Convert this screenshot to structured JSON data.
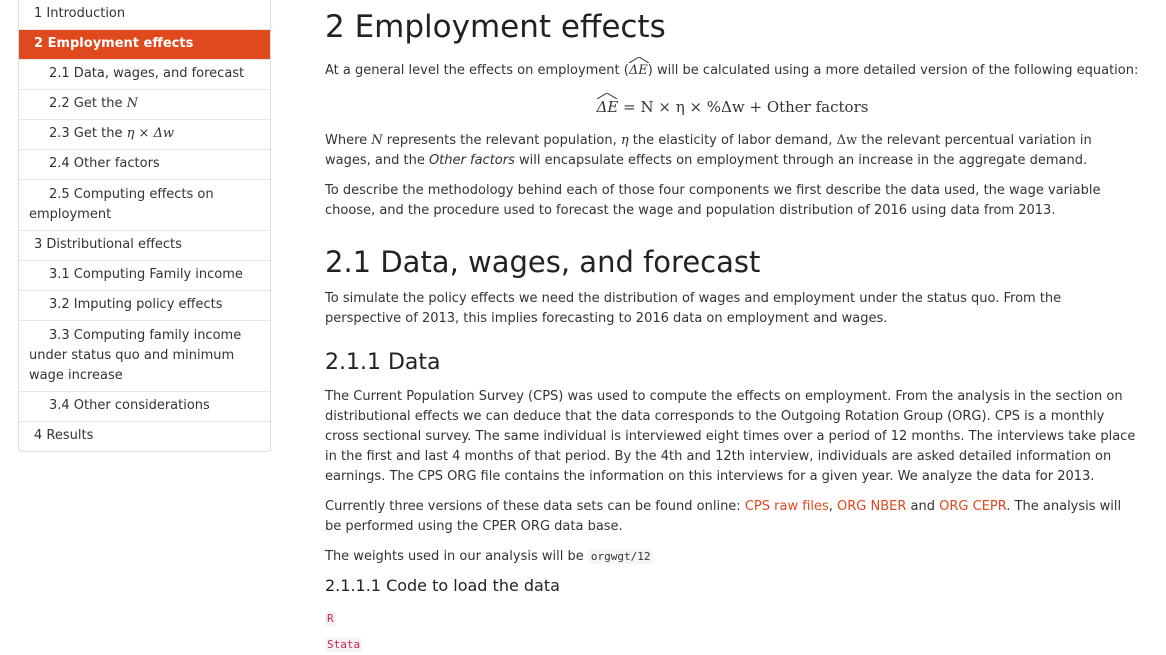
{
  "toc": {
    "items": [
      {
        "label": "1 Introduction"
      },
      {
        "label": "2 Employment effects"
      },
      {
        "label": "2.1 Data, wages, and forecast"
      },
      {
        "label_prefix": "2.2 Get the ",
        "label_math": "N"
      },
      {
        "label_prefix": "2.3 Get the ",
        "label_math": "η × Δw"
      },
      {
        "label": "2.4 Other factors"
      },
      {
        "label": "2.5 Computing effects on employment"
      },
      {
        "label": "3 Distributional effects"
      },
      {
        "label": "3.1 Computing Family income"
      },
      {
        "label": "3.2 Imputing policy effects"
      },
      {
        "label": "3.3 Computing family income under status quo and minimum wage increase"
      },
      {
        "label": "3.4 Other considerations"
      },
      {
        "label": "4 Results"
      }
    ]
  },
  "content": {
    "h1": "2 Employment effects",
    "p1_a": "At a general level the effects on employment (",
    "p1_math": "ΔE",
    "p1_b": ") will be calculated using a more detailed version of the following equation:",
    "eq_lhs": "ΔE",
    "eq_rhs": " = N × η × %Δw + Other factors",
    "p2_a": "Where ",
    "p2_N": "N",
    "p2_b": " represents the relevant population, ",
    "p2_eta": "η",
    "p2_c": " the elasticity of labor demand, ",
    "p2_dw": "Δw",
    "p2_d": " the relevant percentual variation in wages, and the ",
    "p2_other": "Other factors",
    "p2_e": " will encapsulate effects on employment through an increase in the aggregate demand.",
    "p3": "To describe the methodology behind each of those four components we first describe the data used, the wage variable choose, and the procedure used to forecast the wage and population distribution of 2016 using data from 2013.",
    "h2": "2.1 Data, wages, and forecast",
    "p4": "To simulate the policy effects we need the distribution of wages and employment under the status quo. From the perspective of 2013, this implies forecasting to 2016 data on employment and wages.",
    "h3": "2.1.1 Data",
    "p5": "The Current Population Survey (CPS) was used to compute the effects on employment. From the analysis in the section on distributional effects we can deduce that the data corresponds to the Outgoing Rotation Group (ORG). CPS is a monthly cross sectional survey. The same individual is interviewed eight times over a period of 12 months. The interviews take place in the first and last 4 months of that period. By the 4th and 12th interview, individuals are asked detailed information on earnings. The CPS ORG file contains the information on this interviews for a given year. We analyze the data for 2013.",
    "p6_a": "Currently three versions of these data sets can be found online: ",
    "link1": "CPS raw files",
    "p6_b": ", ",
    "link2": "ORG NBER",
    "p6_c": " and ",
    "link3": "ORG CEPR",
    "p6_d": ". The analysis will be performed using the CPER ORG data base.",
    "p7_a": "The weights used in our analysis will be ",
    "p7_code": "orgwgt/12",
    "h4": "2.1.1.1 Code to load the data",
    "code_tab_1": "R",
    "code_tab_2": "Stata"
  },
  "colors": {
    "accent": "#e0481e",
    "text": "#333333"
  }
}
